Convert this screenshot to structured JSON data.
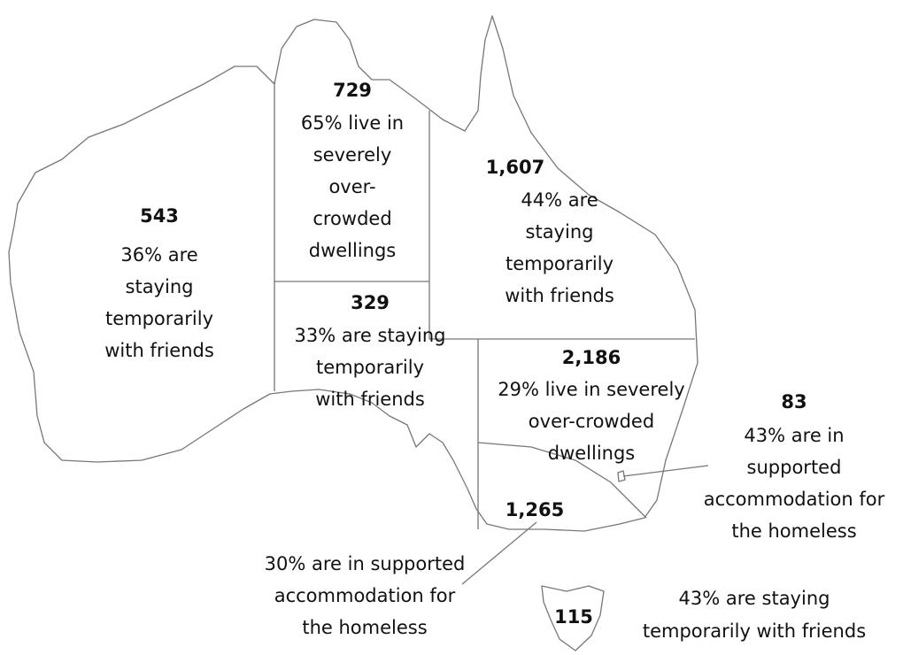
{
  "regions": [
    {
      "count": "543",
      "lines": [
        "36% are",
        "staying",
        "temporarily",
        "with friends"
      ]
    },
    {
      "count": "729",
      "lines": [
        "65% live in",
        "severely",
        "over-",
        "crowded",
        "dwellings"
      ]
    },
    {
      "count": "1,607",
      "lines": [
        "44% are",
        "staying",
        "temporarily",
        "with friends"
      ]
    },
    {
      "count": "329",
      "lines": [
        "33% are staying",
        "temporarily",
        "with friends"
      ]
    },
    {
      "count": "2,186",
      "lines": [
        "29% live in severely",
        "over-crowded",
        "dwellings"
      ]
    },
    {
      "count": "83",
      "lines": [
        "43% are in",
        "supported",
        "accommodation for",
        "the homeless"
      ]
    },
    {
      "count": "1,265",
      "lines": [
        "30% are in supported",
        "accommodation for",
        "the homeless"
      ]
    },
    {
      "count": "115",
      "lines": [
        "43% are staying",
        "temporarily with friends"
      ]
    }
  ]
}
